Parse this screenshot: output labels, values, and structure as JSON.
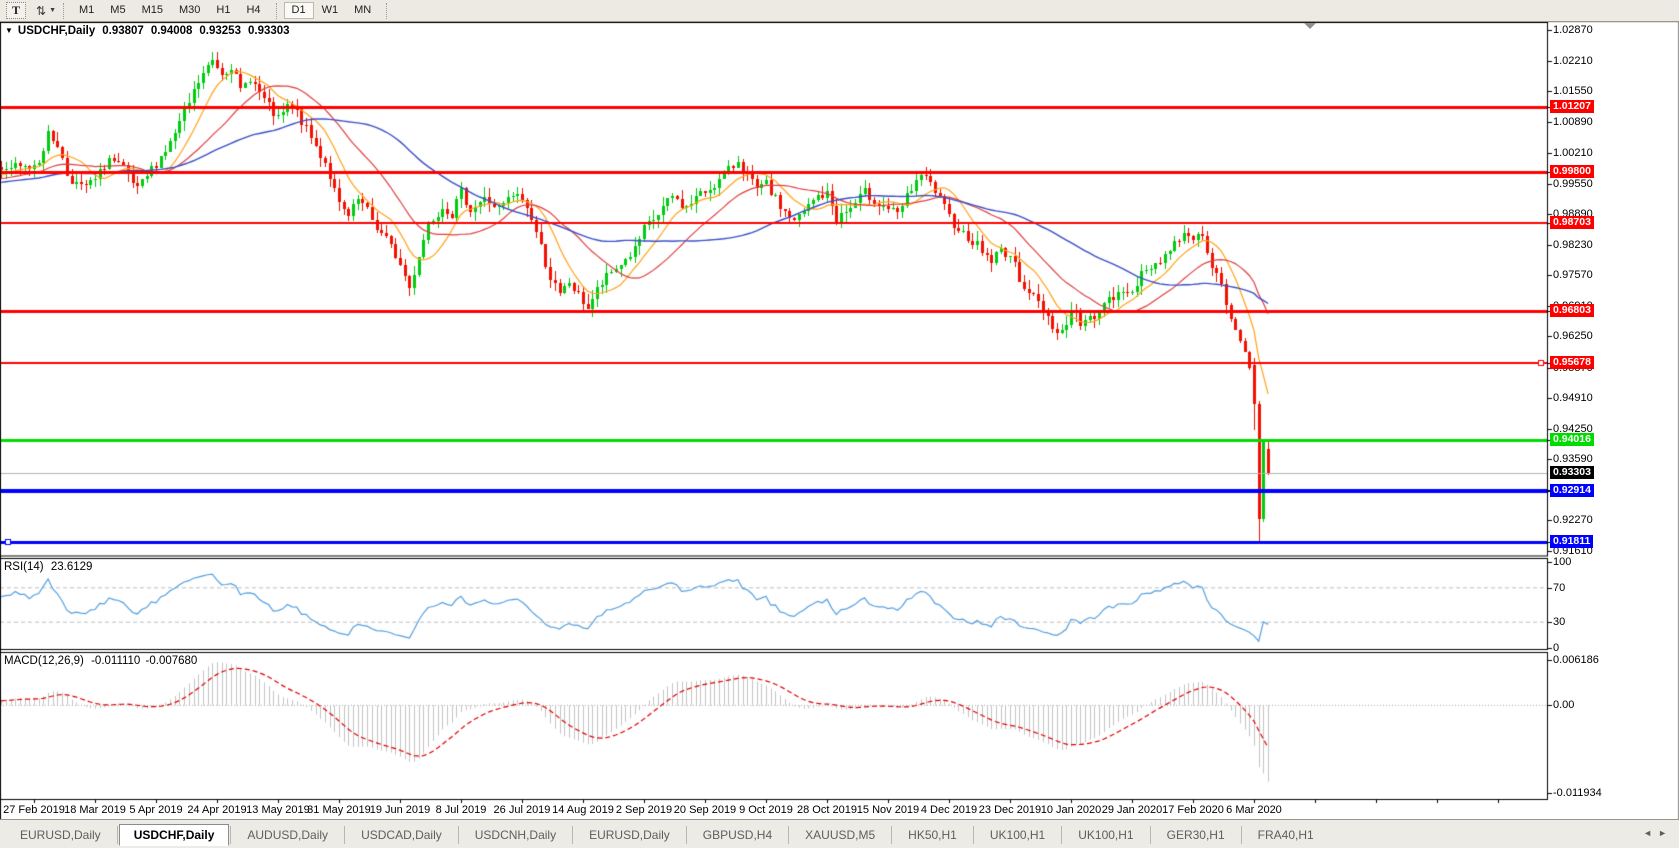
{
  "toolbar": {
    "text_tool": "T",
    "sort_icon": "⇅",
    "dropdown_caret": "▼",
    "timeframe_groups": [
      [
        "M1",
        "M5",
        "M15",
        "M30",
        "H1",
        "H4"
      ],
      [
        "D1",
        "W1",
        "MN"
      ]
    ],
    "active_timeframe": "D1"
  },
  "chart": {
    "caret": "▼",
    "title": "USDCHF,Daily",
    "ohlc": {
      "open": "0.93807",
      "high": "0.94008",
      "low": "0.93253",
      "close": "0.93303"
    }
  },
  "indicators": {
    "rsi": {
      "label": "RSI(14)",
      "value": "23.6129",
      "axis": [
        {
          "label": "100",
          "value": 100
        },
        {
          "label": "70",
          "value": 70
        },
        {
          "label": "30",
          "value": 30
        },
        {
          "label": "0",
          "value": 0
        }
      ]
    },
    "macd": {
      "label": "MACD(12,26,9)",
      "main": "-0.011110",
      "signal": "-0.007680",
      "axis": [
        {
          "label": "0.006186",
          "value": 0.006186
        },
        {
          "label": "0.00",
          "value": 0
        },
        {
          "label": "-0.011934",
          "value": -0.011934
        }
      ]
    }
  },
  "price_axis": {
    "ticks": [
      {
        "label": "1.02870",
        "value": 1.0287
      },
      {
        "label": "1.02210",
        "value": 1.0221
      },
      {
        "label": "1.01550",
        "value": 1.0155
      },
      {
        "label": "1.00890",
        "value": 1.0089
      },
      {
        "label": "1.00210",
        "value": 1.0021
      },
      {
        "label": "0.99550",
        "value": 0.9955
      },
      {
        "label": "0.98890",
        "value": 0.9889
      },
      {
        "label": "0.98230",
        "value": 0.9823
      },
      {
        "label": "0.97570",
        "value": 0.9757
      },
      {
        "label": "0.96910",
        "value": 0.9691
      },
      {
        "label": "0.96250",
        "value": 0.9625
      },
      {
        "label": "0.95570",
        "value": 0.9557
      },
      {
        "label": "0.94910",
        "value": 0.9491
      },
      {
        "label": "0.94250",
        "value": 0.9425
      },
      {
        "label": "0.93590",
        "value": 0.9359
      },
      {
        "label": "0.92930",
        "value": 0.9293
      },
      {
        "label": "0.92270",
        "value": 0.9227
      },
      {
        "label": "0.91610",
        "value": 0.9161
      }
    ]
  },
  "levels": [
    {
      "label": "1.01207",
      "value": 1.01207,
      "color": "#FF0000",
      "width": 3
    },
    {
      "label": "0.99800",
      "value": 0.998,
      "color": "#FF0000",
      "width": 3
    },
    {
      "label": "0.98703",
      "value": 0.98703,
      "color": "#FF0000",
      "width": 2
    },
    {
      "label": "0.96803",
      "value": 0.96803,
      "color": "#FF0000",
      "width": 3
    },
    {
      "label": "0.95678",
      "value": 0.95678,
      "color": "#FF0000",
      "width": 2,
      "handle": "right"
    },
    {
      "label": "0.94016",
      "value": 0.94016,
      "color": "#00DC00",
      "width": 3
    },
    {
      "label": "0.92914",
      "value": 0.92914,
      "color": "#0000FF",
      "width": 4
    },
    {
      "label": "0.91811",
      "value": 0.91811,
      "color": "#0000FF",
      "width": 3,
      "handle": "left"
    }
  ],
  "current_price": {
    "label": "0.93303",
    "value": 0.93303,
    "line_color": "#B4B4B4",
    "badge_bg": "#000000"
  },
  "dates": [
    "27 Feb 2019",
    "18 Mar 2019",
    "5 Apr 2019",
    "24 Apr 2019",
    "13 May 2019",
    "31 May 2019",
    "19 Jun 2019",
    "8 Jul 2019",
    "26 Jul 2019",
    "14 Aug 2019",
    "2 Sep 2019",
    "20 Sep 2019",
    "9 Oct 2019",
    "28 Oct 2019",
    "15 Nov 2019",
    "4 Dec 2019",
    "23 Dec 2019",
    "10 Jan 2020",
    "29 Jan 2020",
    "17 Feb 2020",
    "6 Mar 2020"
  ],
  "tabs": {
    "items": [
      {
        "label": "EURUSD,Daily",
        "active": false
      },
      {
        "label": "USDCHF,Daily",
        "active": true
      },
      {
        "label": "AUDUSD,Daily",
        "active": false
      },
      {
        "label": "USDCAD,Daily",
        "active": false
      },
      {
        "label": "USDCNH,Daily",
        "active": false
      },
      {
        "label": "EURUSD,Daily",
        "active": false
      },
      {
        "label": "GBPUSD,H4",
        "active": false
      },
      {
        "label": "XAUUSD,M5",
        "active": false
      },
      {
        "label": "HK50,H1",
        "active": false
      },
      {
        "label": "UK100,H1",
        "active": false
      },
      {
        "label": "UK100,H1",
        "active": false
      },
      {
        "label": "GER30,H1",
        "active": false
      },
      {
        "label": "FRA40,H1",
        "active": false
      }
    ],
    "scroll_left": "◄",
    "scroll_right": "►"
  },
  "chart_data": {
    "type": "candlestick",
    "symbol": "USDCHF",
    "timeframe": "Daily",
    "bars_per_label": 13,
    "price_axis_range": {
      "top": 1.03043,
      "bottom": 0.91502
    },
    "bull_color": "#00CC11",
    "bear_color": "#F21100",
    "ma": [
      {
        "name": "ma-fast",
        "period": 9,
        "color": "#FFA319"
      },
      {
        "name": "ma-mid",
        "period": 21,
        "color": "#E04040"
      },
      {
        "name": "ma-slow",
        "period": 45,
        "color": "#3C50C8"
      }
    ],
    "rsi": {
      "period": 14,
      "range": [
        0,
        100
      ],
      "color": "#55A0E0",
      "levels": [
        70,
        30
      ],
      "last_value": 23.6129
    },
    "macd": {
      "fast": 12,
      "slow": 26,
      "signal": 9,
      "range": [
        0.006186,
        -0.011934
      ],
      "hist_color": "#C4C4C4",
      "signal_color": "#E00000",
      "last_main": -0.01111,
      "last_signal": -0.00768
    },
    "noise": {
      "seed": 7,
      "close_amp": 0.0011,
      "wick_amp": 0.0021
    },
    "candle_range": [
      -6,
      264
    ],
    "shift_marker_bar": 273,
    "keyframes": [
      [
        -50,
        0.9935
      ],
      [
        -40,
        0.9952
      ],
      [
        -30,
        0.9965
      ],
      [
        -20,
        0.995
      ],
      [
        -10,
        0.998
      ],
      [
        -5,
        0.9988
      ],
      [
        0,
        0.999
      ],
      [
        2,
        1.0008
      ],
      [
        4,
        1.006
      ],
      [
        6,
        1.004
      ],
      [
        8,
        0.9975
      ],
      [
        11,
        0.9945
      ],
      [
        14,
        0.9962
      ],
      [
        17,
        1.001
      ],
      [
        20,
        0.9985
      ],
      [
        23,
        0.994
      ],
      [
        27,
        1.0
      ],
      [
        30,
        1.0042
      ],
      [
        33,
        1.0105
      ],
      [
        36,
        1.0175
      ],
      [
        39,
        1.0222
      ],
      [
        41,
        1.0195
      ],
      [
        43,
        1.021
      ],
      [
        45,
        1.0155
      ],
      [
        47,
        1.0185
      ],
      [
        49,
        1.015
      ],
      [
        51,
        1.012
      ],
      [
        53,
        1.0092
      ],
      [
        55,
        1.012
      ],
      [
        57,
        1.0108
      ],
      [
        59,
        1.007
      ],
      [
        61,
        1.0035
      ],
      [
        63,
        1.0002
      ],
      [
        66,
        0.9908
      ],
      [
        68,
        0.9882
      ],
      [
        70,
        0.992
      ],
      [
        72,
        0.9895
      ],
      [
        74,
        0.986
      ],
      [
        76,
        0.9835
      ],
      [
        78,
        0.98
      ],
      [
        80,
        0.9755
      ],
      [
        81,
        0.9728
      ],
      [
        83,
        0.9802
      ],
      [
        85,
        0.9868
      ],
      [
        88,
        0.9908
      ],
      [
        90,
        0.989
      ],
      [
        92,
        0.9935
      ],
      [
        94,
        0.99
      ],
      [
        97,
        0.9922
      ],
      [
        100,
        0.99
      ],
      [
        103,
        0.9928
      ],
      [
        105,
        0.9922
      ],
      [
        107,
        0.988
      ],
      [
        109,
        0.9818
      ],
      [
        111,
        0.9752
      ],
      [
        113,
        0.9712
      ],
      [
        115,
        0.9742
      ],
      [
        117,
        0.9712
      ],
      [
        119,
        0.9688
      ],
      [
        121,
        0.9725
      ],
      [
        123,
        0.9752
      ],
      [
        126,
        0.9782
      ],
      [
        129,
        0.9812
      ],
      [
        131,
        0.9855
      ],
      [
        134,
        0.9888
      ],
      [
        137,
        0.9928
      ],
      [
        140,
        0.9902
      ],
      [
        142,
        0.9925
      ],
      [
        144,
        0.9938
      ],
      [
        147,
        0.9962
      ],
      [
        150,
        0.9992
      ],
      [
        151,
        1.0008
      ],
      [
        153,
        0.9972
      ],
      [
        155,
        0.994
      ],
      [
        157,
        0.9952
      ],
      [
        160,
        0.9905
      ],
      [
        163,
        0.9872
      ],
      [
        166,
        0.9905
      ],
      [
        168,
        0.9928
      ],
      [
        170,
        0.9932
      ],
      [
        172,
        0.988
      ],
      [
        175,
        0.9902
      ],
      [
        178,
        0.9935
      ],
      [
        181,
        0.9912
      ],
      [
        183,
        0.9902
      ],
      [
        185,
        0.9885
      ],
      [
        187,
        0.9925
      ],
      [
        189,
        0.9962
      ],
      [
        191,
        0.9968
      ],
      [
        193,
        0.9938
      ],
      [
        196,
        0.9882
      ],
      [
        199,
        0.9848
      ],
      [
        202,
        0.9822
      ],
      [
        205,
        0.9788
      ],
      [
        207,
        0.9812
      ],
      [
        209,
        0.98
      ],
      [
        211,
        0.9752
      ],
      [
        213,
        0.9722
      ],
      [
        215,
        0.9698
      ],
      [
        217,
        0.9668
      ],
      [
        219,
        0.9632
      ],
      [
        221,
        0.9648
      ],
      [
        222,
        0.9688
      ],
      [
        224,
        0.9652
      ],
      [
        226,
        0.9662
      ],
      [
        228,
        0.9682
      ],
      [
        230,
        0.9702
      ],
      [
        233,
        0.9718
      ],
      [
        235,
        0.973
      ],
      [
        237,
        0.9755
      ],
      [
        239,
        0.9775
      ],
      [
        241,
        0.9792
      ],
      [
        243,
        0.9812
      ],
      [
        245,
        0.9838
      ],
      [
        247,
        0.985
      ],
      [
        248,
        0.9838
      ],
      [
        249,
        0.9852
      ],
      [
        251,
        0.9815
      ],
      [
        252,
        0.9782
      ],
      [
        253,
        0.9752
      ],
      [
        254,
        0.9728
      ],
      [
        255,
        0.9692
      ],
      [
        256,
        0.9662
      ],
      [
        257,
        0.9638
      ],
      [
        258,
        0.9618
      ],
      [
        259,
        0.9592
      ],
      [
        260,
        0.956
      ],
      [
        261,
        0.9478
      ],
      [
        262,
        0.923
      ],
      [
        263,
        0.94
      ],
      [
        264,
        0.93303
      ]
    ],
    "overrides": [
      {
        "i": 261,
        "open": 0.9562,
        "high": 0.9578,
        "low": 0.9422,
        "close": 0.9478
      },
      {
        "i": 262,
        "open": 0.9478,
        "high": 0.9486,
        "low": 0.9181,
        "close": 0.923
      },
      {
        "i": 263,
        "open": 0.923,
        "high": 0.9404,
        "low": 0.9224,
        "close": 0.94
      },
      {
        "i": 264,
        "open": 0.93807,
        "high": 0.94008,
        "low": 0.93253,
        "close": 0.93303
      }
    ]
  }
}
